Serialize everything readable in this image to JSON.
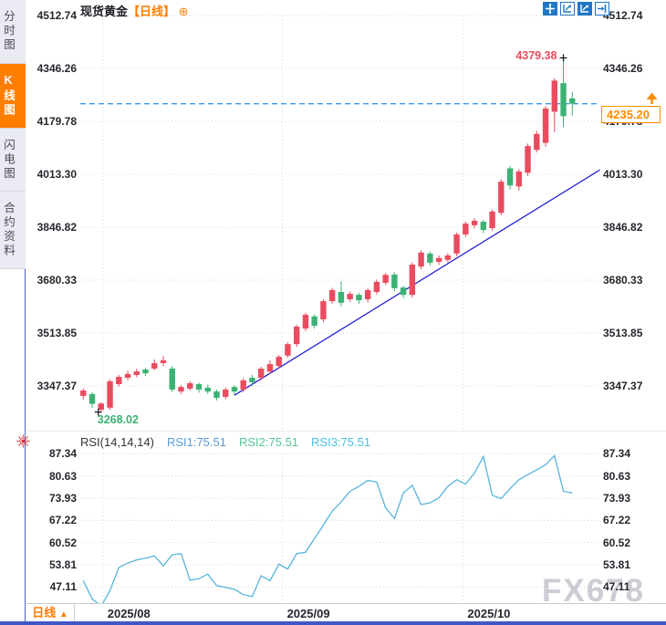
{
  "sidebar": {
    "tabs": [
      {
        "label": "分时图",
        "active": false
      },
      {
        "label": "K线图",
        "active": true
      },
      {
        "label": "闪电图",
        "active": false
      },
      {
        "label": "合约资料",
        "active": false
      }
    ]
  },
  "header": {
    "symbol": "现货黄金",
    "timeframe_tag": "【日线】",
    "add_icon": "⊕"
  },
  "toolbar": {
    "icons": [
      "crosshair-icon",
      "scale-axes-icon",
      "scale-axes-filled-icon",
      "jump-to-latest-icon"
    ]
  },
  "footer": {
    "timeframe_tab": "日线",
    "arrow": "▲"
  },
  "watermark": "FX678",
  "colors": {
    "up": "#ea4b5f",
    "down": "#3bb273",
    "trendline": "#2321d6",
    "last_price_line": "#3e97e8",
    "accent_orange": "#ff7e00",
    "price_box_orange": "#ff8c00",
    "rsi_line": "#56b4dc",
    "rsi1": "#5b9bd5",
    "rsi2": "#55c596",
    "rsi3": "#49c0e0",
    "sidebar_active": "#ff7e00",
    "bottom_bar": "#3f57c6"
  },
  "chart_data": [
    {
      "type": "candlestick",
      "title": "现货黄金 日线 (spot gold daily)",
      "grid": "dotted",
      "legend_position": "none",
      "y_ticks": [
        4512.74,
        4346.26,
        4179.78,
        4013.3,
        3846.82,
        3680.33,
        3513.85,
        3347.37
      ],
      "ylim": [
        3240,
        4560
      ],
      "x_ticks": [
        {
          "label": "2025/08",
          "index": 2.2
        },
        {
          "label": "2025/09",
          "index": 22.4
        },
        {
          "label": "2025/10",
          "index": 42.7
        }
      ],
      "high_annotation": {
        "value": 4379.38,
        "index": 54
      },
      "low_annotation": {
        "value": 3268.02,
        "index": 2
      },
      "last_price": 4235.2,
      "trendline": {
        "from": {
          "index": 17,
          "price": 3318
        },
        "to": {
          "index": 58.1,
          "price": 4027
        }
      },
      "candles": [
        [
          3316,
          3340,
          3305,
          3333
        ],
        [
          3322,
          3328,
          3278,
          3291
        ],
        [
          3272,
          3296,
          3268.02,
          3292
        ],
        [
          3279,
          3368,
          3272,
          3362
        ],
        [
          3353,
          3382,
          3345,
          3376
        ],
        [
          3373,
          3395,
          3365,
          3385
        ],
        [
          3382,
          3402,
          3375,
          3393
        ],
        [
          3399,
          3404,
          3378,
          3387
        ],
        [
          3402,
          3431,
          3396,
          3419
        ],
        [
          3419,
          3442,
          3410,
          3428
        ],
        [
          3402,
          3410,
          3328,
          3336
        ],
        [
          3330,
          3350,
          3322,
          3344
        ],
        [
          3339,
          3362,
          3332,
          3356
        ],
        [
          3353,
          3358,
          3326,
          3336
        ],
        [
          3342,
          3352,
          3322,
          3330
        ],
        [
          3330,
          3336,
          3302,
          3310
        ],
        [
          3313,
          3342,
          3305,
          3336
        ],
        [
          3344,
          3350,
          3320,
          3330
        ],
        [
          3336,
          3372,
          3328,
          3365
        ],
        [
          3373,
          3382,
          3348,
          3359
        ],
        [
          3373,
          3408,
          3365,
          3402
        ],
        [
          3393,
          3428,
          3385,
          3416
        ],
        [
          3410,
          3445,
          3402,
          3439
        ],
        [
          3443,
          3485,
          3436,
          3479
        ],
        [
          3479,
          3540,
          3470,
          3534
        ],
        [
          3528,
          3578,
          3520,
          3571
        ],
        [
          3566,
          3572,
          3528,
          3537
        ],
        [
          3557,
          3620,
          3548,
          3614
        ],
        [
          3614,
          3656,
          3606,
          3649
        ],
        [
          3643,
          3677,
          3598,
          3609
        ],
        [
          3620,
          3645,
          3612,
          3637
        ],
        [
          3634,
          3640,
          3606,
          3617
        ],
        [
          3620,
          3655,
          3610,
          3649
        ],
        [
          3643,
          3682,
          3635,
          3675
        ],
        [
          3672,
          3703,
          3665,
          3697
        ],
        [
          3698,
          3705,
          3645,
          3655
        ],
        [
          3657,
          3662,
          3624,
          3634
        ],
        [
          3634,
          3736,
          3626,
          3729
        ],
        [
          3723,
          3774,
          3715,
          3767
        ],
        [
          3764,
          3770,
          3726,
          3735
        ],
        [
          3738,
          3758,
          3728,
          3750
        ],
        [
          3744,
          3765,
          3736,
          3758
        ],
        [
          3764,
          3830,
          3755,
          3824
        ],
        [
          3824,
          3865,
          3816,
          3858
        ],
        [
          3853,
          3875,
          3843,
          3867
        ],
        [
          3864,
          3870,
          3828,
          3838
        ],
        [
          3844,
          3902,
          3836,
          3896
        ],
        [
          3892,
          3998,
          3884,
          3990
        ],
        [
          4032,
          4040,
          3965,
          3978
        ],
        [
          3975,
          4030,
          3962,
          4022
        ],
        [
          4018,
          4110,
          4008,
          4102
        ],
        [
          4090,
          4150,
          4082,
          4140
        ],
        [
          4112,
          4228,
          4100,
          4220
        ],
        [
          4210,
          4315,
          4145,
          4308
        ],
        [
          4300,
          4379.38,
          4162,
          4196
        ],
        [
          4252,
          4272,
          4198,
          4235.2
        ]
      ]
    },
    {
      "type": "line",
      "title": "RSI(14,14,14)",
      "legend": [
        {
          "label": "RSI1:75.51",
          "color": "#5b9bd5"
        },
        {
          "label": "RSI2:75.51",
          "color": "#55c596"
        },
        {
          "label": "RSI3:75.51",
          "color": "#49c0e0"
        }
      ],
      "y_ticks": [
        87.34,
        80.63,
        73.93,
        67.22,
        60.52,
        53.81,
        47.11
      ],
      "ylim": [
        40,
        90
      ],
      "values": [
        49,
        43.5,
        41.3,
        46,
        53,
        54.3,
        55.3,
        55.8,
        56.5,
        53.5,
        56.8,
        57.2,
        49.2,
        49.6,
        51,
        47.5,
        47,
        46.4,
        44.8,
        44.2,
        50.5,
        49,
        54,
        52.5,
        57.2,
        57.6,
        61.7,
        65.8,
        70,
        72.8,
        76,
        77.5,
        79.3,
        78.8,
        71,
        67.8,
        75.5,
        77.8,
        72,
        72.5,
        74,
        77.5,
        79.5,
        78.2,
        81.5,
        86.5,
        74.8,
        73.8,
        76.8,
        79.5,
        81,
        82.5,
        84,
        86.8,
        76,
        75.51
      ]
    }
  ]
}
